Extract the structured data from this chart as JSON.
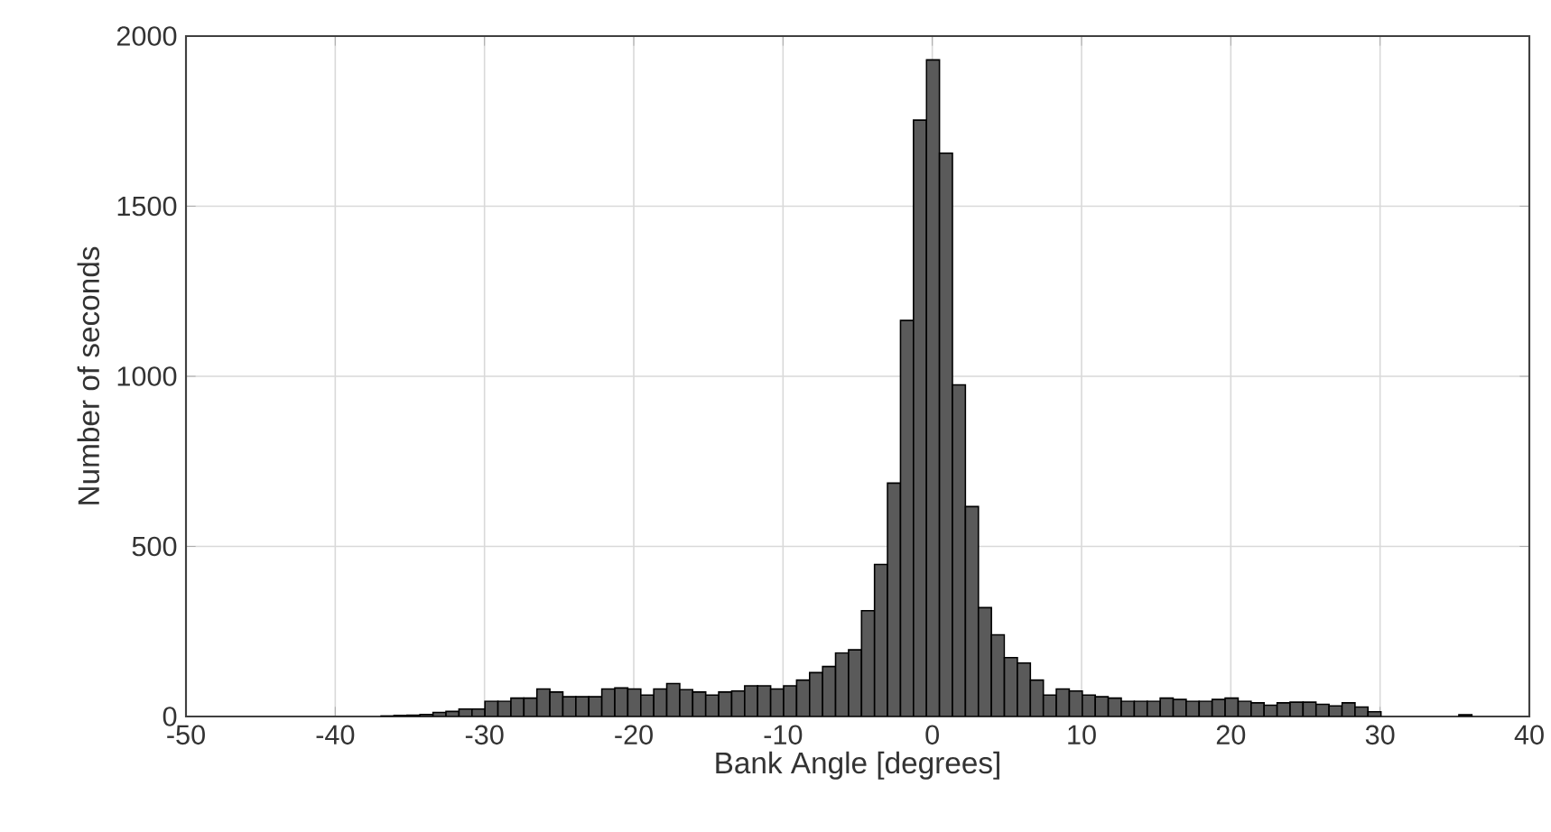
{
  "chart_data": {
    "type": "histogram",
    "xlabel": "Bank Angle [degrees]",
    "ylabel": "Number of seconds",
    "bins": [
      -36.93,
      -36.06,
      -35.19,
      -34.32,
      -33.45,
      -32.58,
      -31.71,
      -30.84,
      -29.97,
      -29.1,
      -28.23,
      -27.36,
      -26.49,
      -25.62,
      -24.75,
      -23.88,
      -23.01,
      -22.14,
      -21.27,
      -20.4,
      -19.53,
      -18.66,
      -17.79,
      -16.92,
      -16.05,
      -15.18,
      -14.31,
      -13.44,
      -12.57,
      -11.7,
      -10.83,
      -9.96,
      -9.09,
      -8.22,
      -7.35,
      -6.48,
      -5.61,
      -4.74,
      -3.87,
      -3.0,
      -2.13,
      -1.26,
      -0.39,
      0.48,
      1.35,
      2.22,
      3.09,
      3.96,
      4.83,
      5.7,
      6.57,
      7.44,
      8.31,
      9.18,
      10.05,
      10.92,
      11.79,
      12.66,
      13.53,
      14.4,
      15.27,
      16.14,
      17.01,
      17.88,
      18.75,
      19.62,
      20.49,
      21.36,
      22.23,
      23.1,
      23.97,
      24.84,
      25.71,
      26.58,
      27.45,
      28.32,
      29.19,
      30.06,
      30.93,
      31.8,
      32.67,
      33.54,
      34.41,
      35.28,
      36.15
    ],
    "values": [
      2,
      3,
      4,
      6,
      12,
      15,
      22,
      22,
      45,
      45,
      54,
      54,
      81,
      72,
      58,
      58,
      58,
      81,
      84,
      81,
      63,
      81,
      97,
      79,
      72,
      63,
      72,
      75,
      90,
      90,
      81,
      90,
      107,
      129,
      147,
      187,
      196,
      311,
      447,
      686,
      1164,
      1753,
      1930,
      1656,
      975,
      617,
      320,
      240,
      173,
      157,
      107,
      63,
      81,
      75,
      63,
      58,
      54,
      45,
      45,
      45,
      54,
      50,
      45,
      45,
      50,
      54,
      45,
      40,
      33,
      40,
      42,
      42,
      36,
      31,
      40,
      28,
      14,
      null,
      null,
      null,
      null,
      null,
      null,
      5
    ],
    "color": "#5a5a5a",
    "xlim": [
      -50,
      40
    ],
    "ylim": [
      0,
      2000
    ],
    "xticks": [
      -50,
      -40,
      -30,
      -20,
      -10,
      0,
      10,
      20,
      30,
      40
    ],
    "yticks": [
      0,
      500,
      1000,
      1500,
      2000
    ],
    "grid": true
  }
}
